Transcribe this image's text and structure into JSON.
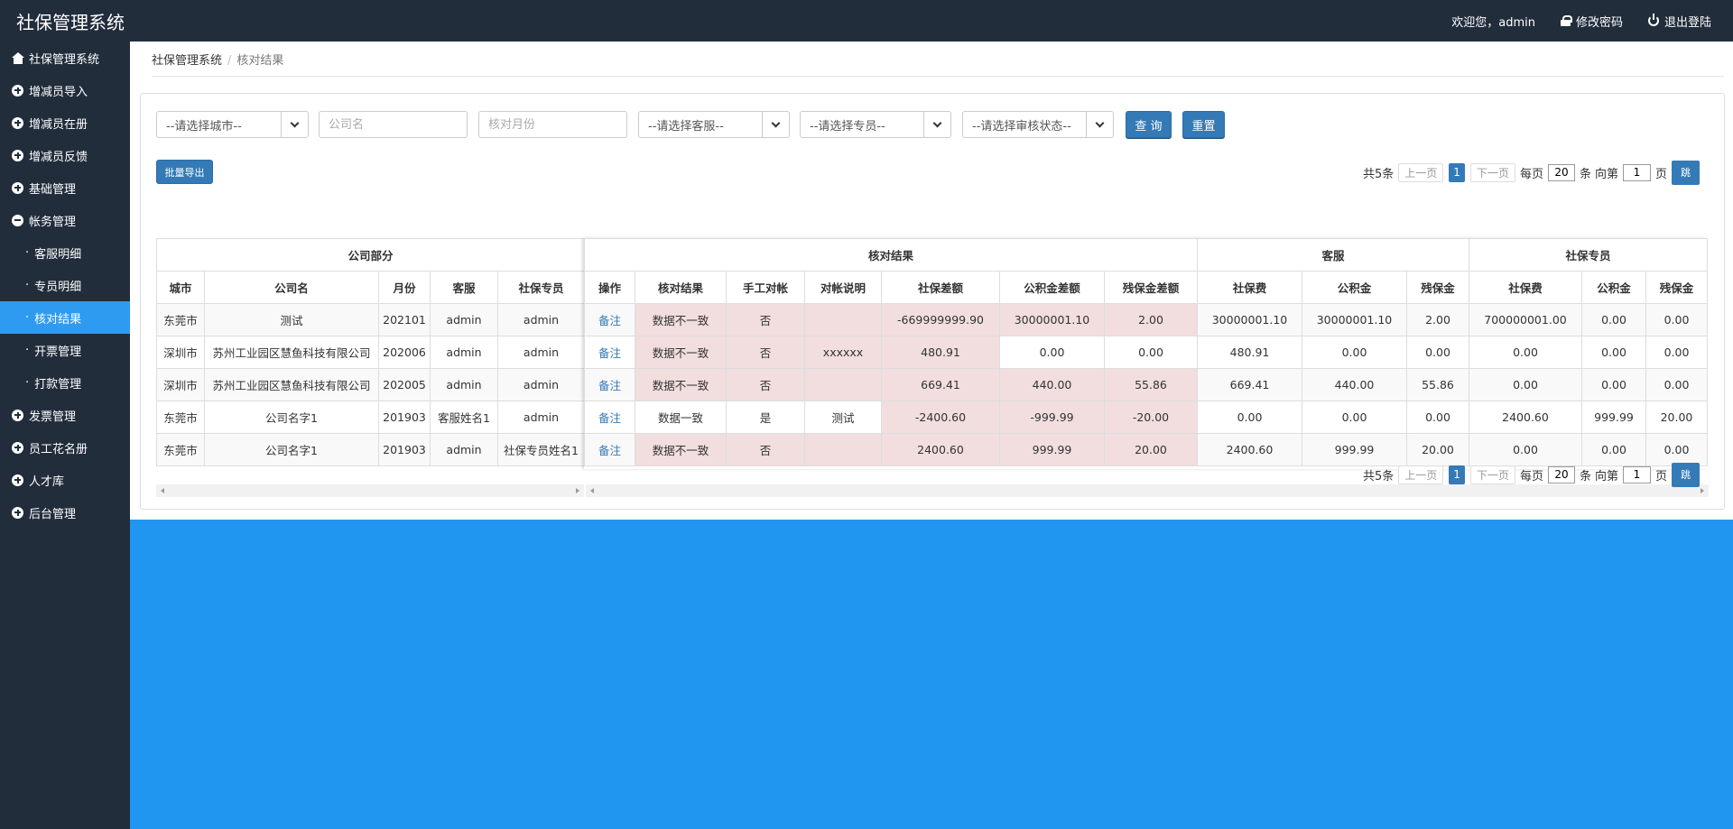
{
  "app": {
    "title": "社保管理系统"
  },
  "topbar": {
    "welcome": "欢迎您，admin",
    "change_password": "修改密码",
    "logout": "退出登陆"
  },
  "sidebar": {
    "items": [
      {
        "label": "社保管理系统",
        "icon": "home-icon"
      },
      {
        "label": "增减员导入",
        "icon": "plus-circle-icon"
      },
      {
        "label": "增减员在册",
        "icon": "plus-circle-icon"
      },
      {
        "label": "增减员反馈",
        "icon": "plus-circle-icon"
      },
      {
        "label": "基础管理",
        "icon": "plus-circle-icon"
      },
      {
        "label": "帐务管理",
        "icon": "minus-circle-icon"
      }
    ],
    "sub_items": [
      {
        "label": "客服明细"
      },
      {
        "label": "专员明细"
      },
      {
        "label": "核对结果",
        "active": true
      },
      {
        "label": "开票管理"
      },
      {
        "label": "打款管理"
      }
    ],
    "items_after": [
      {
        "label": "发票管理",
        "icon": "plus-circle-icon"
      },
      {
        "label": "员工花名册",
        "icon": "plus-circle-icon"
      },
      {
        "label": "人才库",
        "icon": "plus-circle-icon"
      },
      {
        "label": "后台管理",
        "icon": "plus-circle-icon"
      }
    ],
    "bullet": "·"
  },
  "breadcrumb": {
    "root": "社保管理系统",
    "sep": "/",
    "current": "核对结果"
  },
  "filters": {
    "city": "--请选择城市--",
    "company_placeholder": "公司名",
    "month_placeholder": "核对月份",
    "service": "--请选择客服--",
    "specialist": "--请选择专员--",
    "audit_status": "--请选择审核状态--",
    "query": "查 询",
    "reset": "重置"
  },
  "export_label": "批量导出",
  "pager": {
    "total": "共5条",
    "prev": "上一页",
    "current": "1",
    "next": "下一页",
    "per_page_label": "每页",
    "per_page": "20",
    "unit": "条",
    "goto_label": "向第",
    "goto_page": "1",
    "page_unit": "页",
    "jump": "跳"
  },
  "table": {
    "groups_left": [
      {
        "label": "公司部分"
      }
    ],
    "groups_right": [
      {
        "label": "核对结果"
      },
      {
        "label": "客服"
      },
      {
        "label": "社保专员"
      }
    ],
    "cols_left": [
      "城市",
      "公司名",
      "月份",
      "客服",
      "社保专员"
    ],
    "cols_right": [
      "操作",
      "核对结果",
      "手工对帐",
      "对帐说明",
      "社保差额",
      "公积金差额",
      "残保金差额",
      "社保费",
      "公积金",
      "残保金",
      "社保费",
      "公积金",
      "残保金"
    ],
    "rows": [
      {
        "city": "东莞市",
        "company": "测试",
        "month": "202101",
        "service": "admin",
        "specialist": "admin",
        "op": "备注",
        "result": "数据不一致",
        "manual": "否",
        "note": "",
        "ss_diff": "-669999999.90",
        "hf_diff": "30000001.10",
        "dis_diff": "2.00",
        "cs_ss": "30000001.10",
        "cs_hf": "30000001.10",
        "cs_dis": "2.00",
        "sp_ss": "700000001.00",
        "sp_hf": "0.00",
        "sp_dis": "0.00"
      },
      {
        "city": "深圳市",
        "company": "苏州工业园区慧鱼科技有限公司",
        "month": "202006",
        "service": "admin",
        "specialist": "admin",
        "op": "备注",
        "result": "数据不一致",
        "manual": "否",
        "note": "xxxxxx",
        "ss_diff": "480.91",
        "hf_diff": "0.00",
        "dis_diff": "0.00",
        "cs_ss": "480.91",
        "cs_hf": "0.00",
        "cs_dis": "0.00",
        "sp_ss": "0.00",
        "sp_hf": "0.00",
        "sp_dis": "0.00"
      },
      {
        "city": "深圳市",
        "company": "苏州工业园区慧鱼科技有限公司",
        "month": "202005",
        "service": "admin",
        "specialist": "admin",
        "op": "备注",
        "result": "数据不一致",
        "manual": "否",
        "note": "",
        "ss_diff": "669.41",
        "hf_diff": "440.00",
        "dis_diff": "55.86",
        "cs_ss": "669.41",
        "cs_hf": "440.00",
        "cs_dis": "55.86",
        "sp_ss": "0.00",
        "sp_hf": "0.00",
        "sp_dis": "0.00"
      },
      {
        "city": "东莞市",
        "company": "公司名字1",
        "month": "201903",
        "service": "客服姓名1",
        "specialist": "admin",
        "op": "备注",
        "result": "数据一致",
        "manual": "是",
        "note": "测试",
        "ss_diff": "-2400.60",
        "hf_diff": "-999.99",
        "dis_diff": "-20.00",
        "cs_ss": "0.00",
        "cs_hf": "0.00",
        "cs_dis": "0.00",
        "sp_ss": "2400.60",
        "sp_hf": "999.99",
        "sp_dis": "20.00"
      },
      {
        "city": "东莞市",
        "company": "公司名字1",
        "month": "201903",
        "service": "admin",
        "specialist": "社保专员姓名1",
        "op": "备注",
        "result": "数据不一致",
        "manual": "否",
        "note": "",
        "ss_diff": "2400.60",
        "hf_diff": "999.99",
        "dis_diff": "20.00",
        "cs_ss": "2400.60",
        "cs_hf": "999.99",
        "cs_dis": "20.00",
        "sp_ss": "0.00",
        "sp_hf": "0.00",
        "sp_dis": "0.00"
      }
    ]
  },
  "colors": {
    "header_bg": "#222d3c",
    "active": "#2f9bf0",
    "primary": "#337ab7",
    "mismatch": "#f2dede",
    "page_bg": "#2196f0"
  }
}
